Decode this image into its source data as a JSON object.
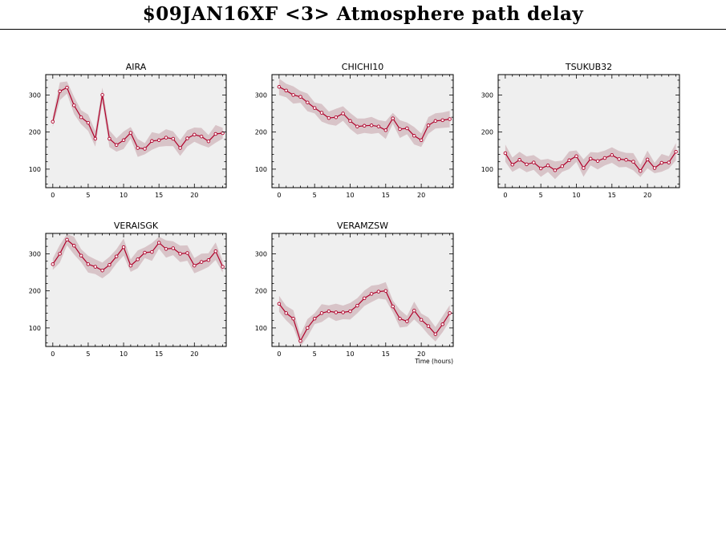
{
  "page": {
    "title": "$09JAN16XF <3>  Atmosphere path delay"
  },
  "colors": {
    "line": "#b0002a",
    "band": "#d8c4c8",
    "plot_bg": "#efefef",
    "axis": "#000000"
  },
  "chart_data": [
    {
      "type": "line",
      "title": "AIRA",
      "x": [
        0,
        1,
        2,
        3,
        4,
        5,
        6,
        7,
        8,
        9,
        10,
        11,
        12,
        13,
        14,
        15,
        16,
        17,
        18,
        19,
        20,
        21,
        22,
        23,
        24
      ],
      "values": [
        228,
        310,
        320,
        272,
        240,
        225,
        182,
        300,
        182,
        165,
        178,
        198,
        157,
        155,
        176,
        178,
        185,
        182,
        157,
        183,
        193,
        188,
        175,
        195,
        197
      ],
      "ylim": [
        50,
        355
      ],
      "xlim": [
        -1,
        24.5
      ],
      "yticks": [
        100,
        200,
        300
      ],
      "xticks": [
        0,
        5,
        10,
        15,
        20
      ],
      "xlabel": ""
    },
    {
      "type": "line",
      "title": "CHICHI10",
      "x": [
        0,
        1,
        2,
        3,
        4,
        5,
        6,
        7,
        8,
        9,
        10,
        11,
        12,
        13,
        14,
        15,
        16,
        17,
        18,
        19,
        20,
        21,
        22,
        23,
        24
      ],
      "values": [
        322,
        312,
        300,
        295,
        280,
        265,
        252,
        238,
        240,
        250,
        230,
        215,
        217,
        218,
        215,
        205,
        237,
        208,
        210,
        190,
        178,
        218,
        230,
        232,
        235
      ],
      "ylim": [
        50,
        355
      ],
      "xlim": [
        -1,
        24.5
      ],
      "yticks": [
        100,
        200,
        300
      ],
      "xticks": [
        0,
        5,
        10,
        15,
        20
      ],
      "xlabel": ""
    },
    {
      "type": "line",
      "title": "TSUKUB32",
      "x": [
        0,
        1,
        2,
        3,
        4,
        5,
        6,
        7,
        8,
        9,
        10,
        11,
        12,
        13,
        14,
        15,
        16,
        17,
        18,
        19,
        20,
        21,
        22,
        23,
        24
      ],
      "values": [
        143,
        112,
        125,
        113,
        118,
        102,
        110,
        97,
        108,
        124,
        135,
        103,
        128,
        122,
        130,
        138,
        127,
        125,
        120,
        95,
        126,
        103,
        117,
        118,
        147
      ],
      "ylim": [
        50,
        355
      ],
      "xlim": [
        -1,
        24.5
      ],
      "yticks": [
        100,
        200,
        300
      ],
      "xticks": [
        0,
        5,
        10,
        15,
        20
      ],
      "xlabel": ""
    },
    {
      "type": "line",
      "title": "VERAISGK",
      "x": [
        0,
        1,
        2,
        3,
        4,
        5,
        6,
        7,
        8,
        9,
        10,
        11,
        12,
        13,
        14,
        15,
        16,
        17,
        18,
        19,
        20,
        21,
        22,
        23,
        24
      ],
      "values": [
        272,
        300,
        338,
        322,
        295,
        272,
        265,
        255,
        270,
        293,
        318,
        268,
        285,
        303,
        305,
        330,
        313,
        315,
        300,
        302,
        268,
        278,
        283,
        307,
        265
      ],
      "ylim": [
        50,
        355
      ],
      "xlim": [
        -1,
        24.5
      ],
      "yticks": [
        100,
        200,
        300
      ],
      "xticks": [
        0,
        5,
        10,
        15,
        20
      ],
      "xlabel": ""
    },
    {
      "type": "line",
      "title": "VERAMZSW",
      "x": [
        0,
        1,
        2,
        3,
        4,
        5,
        6,
        7,
        8,
        9,
        10,
        11,
        12,
        13,
        14,
        15,
        16,
        17,
        18,
        19,
        20,
        21,
        22,
        23,
        24
      ],
      "values": [
        165,
        140,
        125,
        65,
        100,
        125,
        140,
        145,
        142,
        142,
        145,
        160,
        180,
        192,
        198,
        200,
        158,
        125,
        118,
        147,
        122,
        105,
        83,
        110,
        140
      ],
      "ylim": [
        50,
        355
      ],
      "xlim": [
        -1,
        24.5
      ],
      "yticks": [
        100,
        200,
        300
      ],
      "xticks": [
        0,
        5,
        10,
        15,
        20
      ],
      "xlabel": "Time (hours)"
    }
  ]
}
